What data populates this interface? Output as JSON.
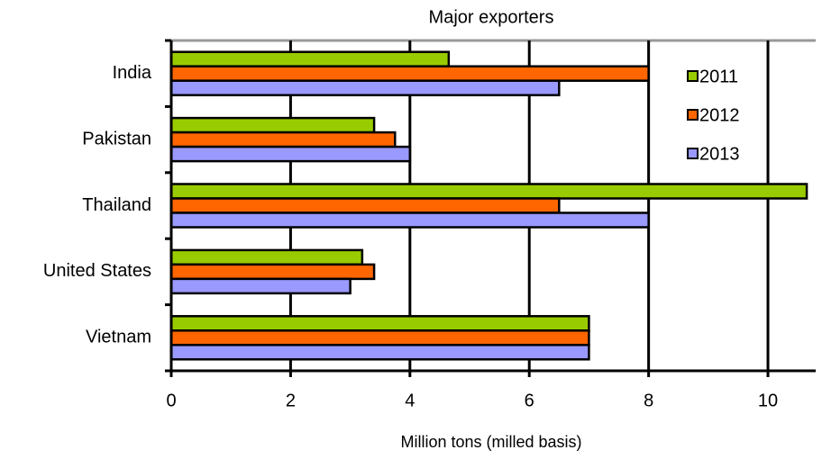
{
  "chart_data": {
    "type": "barh",
    "title": "Major exporters",
    "xlabel": "Million tons (milled basis)",
    "categories": [
      "India",
      "Pakistan",
      "Thailand",
      "United States",
      "Vietnam"
    ],
    "series": [
      {
        "name": "2011",
        "color": "#99cc00",
        "values": [
          4.65,
          3.4,
          10.65,
          3.2,
          7
        ]
      },
      {
        "name": "2012",
        "color": "#ff6600",
        "values": [
          8,
          3.75,
          6.5,
          3.4,
          7
        ]
      },
      {
        "name": "2013",
        "color": "#9999ff",
        "values": [
          6.5,
          4,
          8,
          3,
          7
        ]
      }
    ],
    "xlim": [
      0,
      10.8
    ],
    "xticks": [
      0,
      2,
      4,
      6,
      8,
      10
    ],
    "grid": true,
    "legend": "upper right"
  }
}
